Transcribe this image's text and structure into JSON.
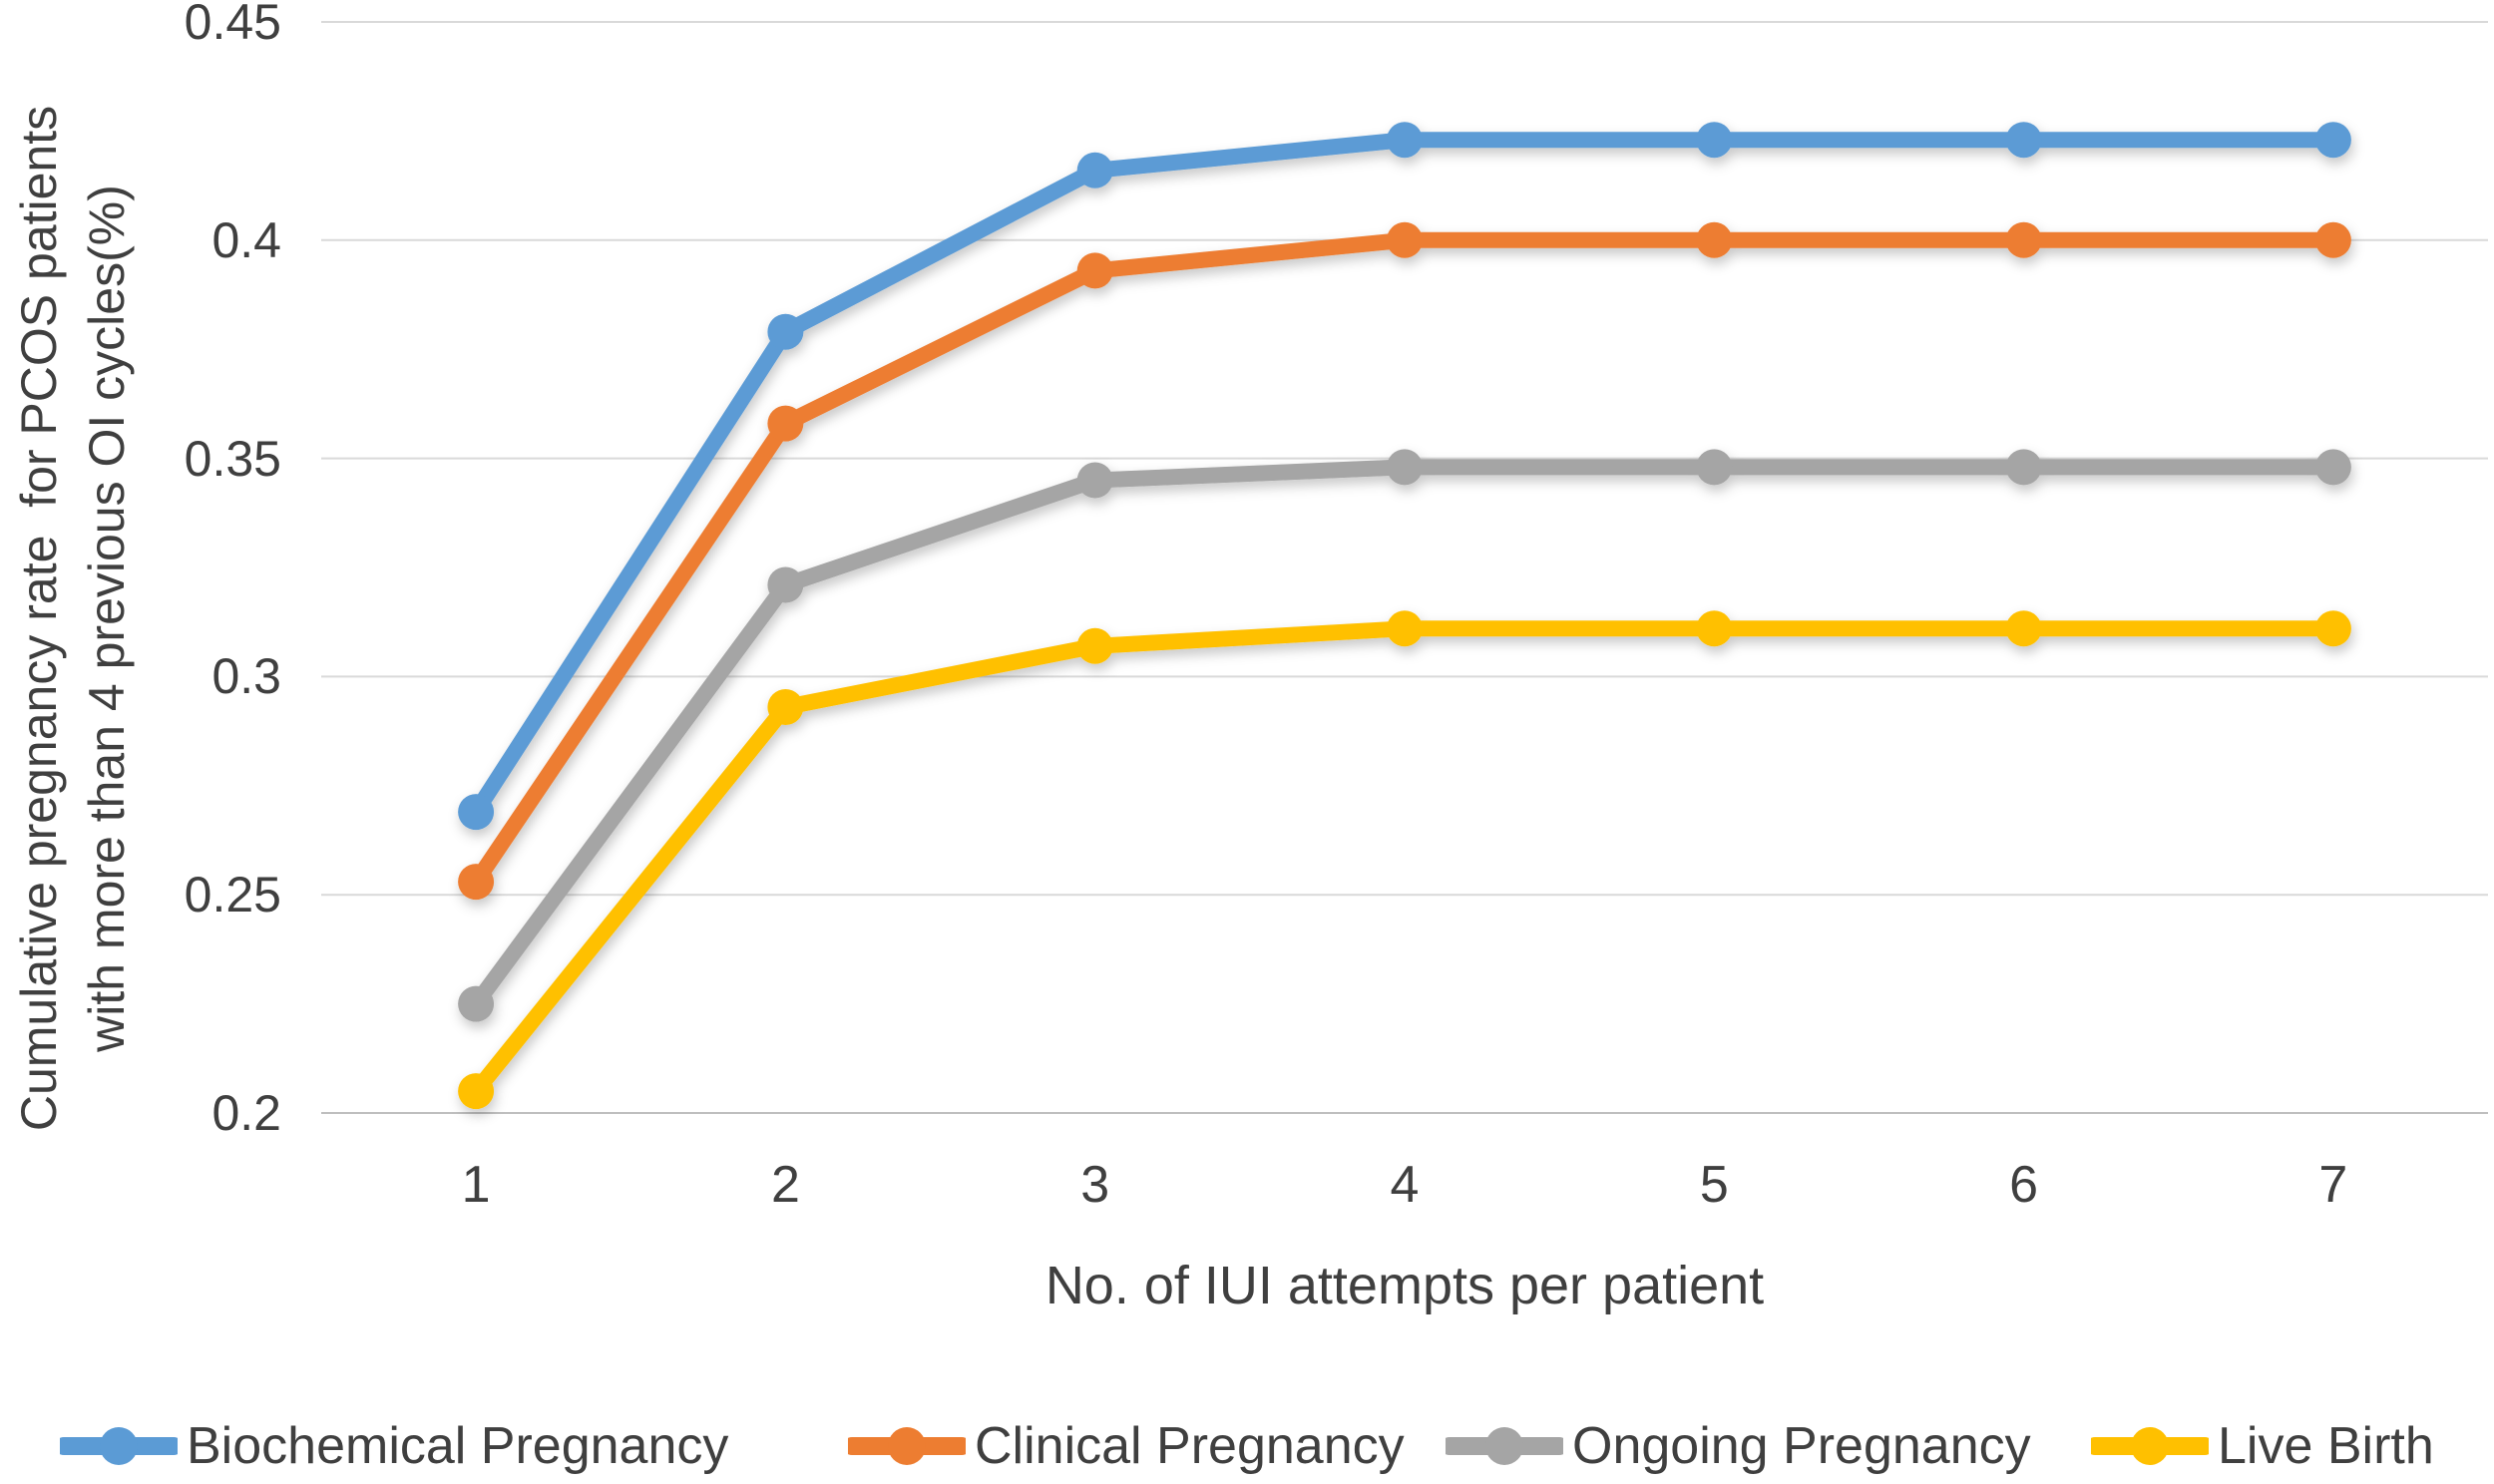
{
  "chart_data": {
    "type": "line",
    "title": "",
    "xlabel": "No. of IUI attempts per patient",
    "ylabel": "Cumulative pregnancy rate  for PCOS patients with more than 4 previous OI cycles(%)",
    "ylabel_lines": [
      "Cumulative pregnancy rate  for PCOS patients",
      "with more than 4 previous OI cycles(%)"
    ],
    "categories": [
      "1",
      "2",
      "3",
      "4",
      "5",
      "6",
      "7"
    ],
    "y_ticks": [
      "0.45",
      "0.4",
      "0.35",
      "0.3",
      "0.25",
      "0.2"
    ],
    "ylim": [
      0.2,
      0.45
    ],
    "grid": true,
    "legend_position": "bottom",
    "marker": "circle",
    "series": [
      {
        "name": "Biochemical Pregnancy",
        "color": "#5B9BD5",
        "values": [
          0.269,
          0.379,
          0.416,
          0.423,
          0.423,
          0.423,
          0.423
        ]
      },
      {
        "name": "Clinical Pregnancy",
        "color": "#ED7D31",
        "values": [
          0.253,
          0.358,
          0.393,
          0.4,
          0.4,
          0.4,
          0.4
        ]
      },
      {
        "name": "Ongoing Pregnancy",
        "color": "#A5A5A5",
        "values": [
          0.225,
          0.321,
          0.345,
          0.348,
          0.348,
          0.348,
          0.348
        ]
      },
      {
        "name": "Live Birth",
        "color": "#FFC000",
        "values": [
          0.205,
          0.293,
          0.307,
          0.311,
          0.311,
          0.311,
          0.311
        ]
      }
    ]
  },
  "colors": {
    "text": "#3F3F3F",
    "gridline": "#D9D9D9",
    "axis_line": "#BFBFBF",
    "background": "#FFFFFF"
  }
}
